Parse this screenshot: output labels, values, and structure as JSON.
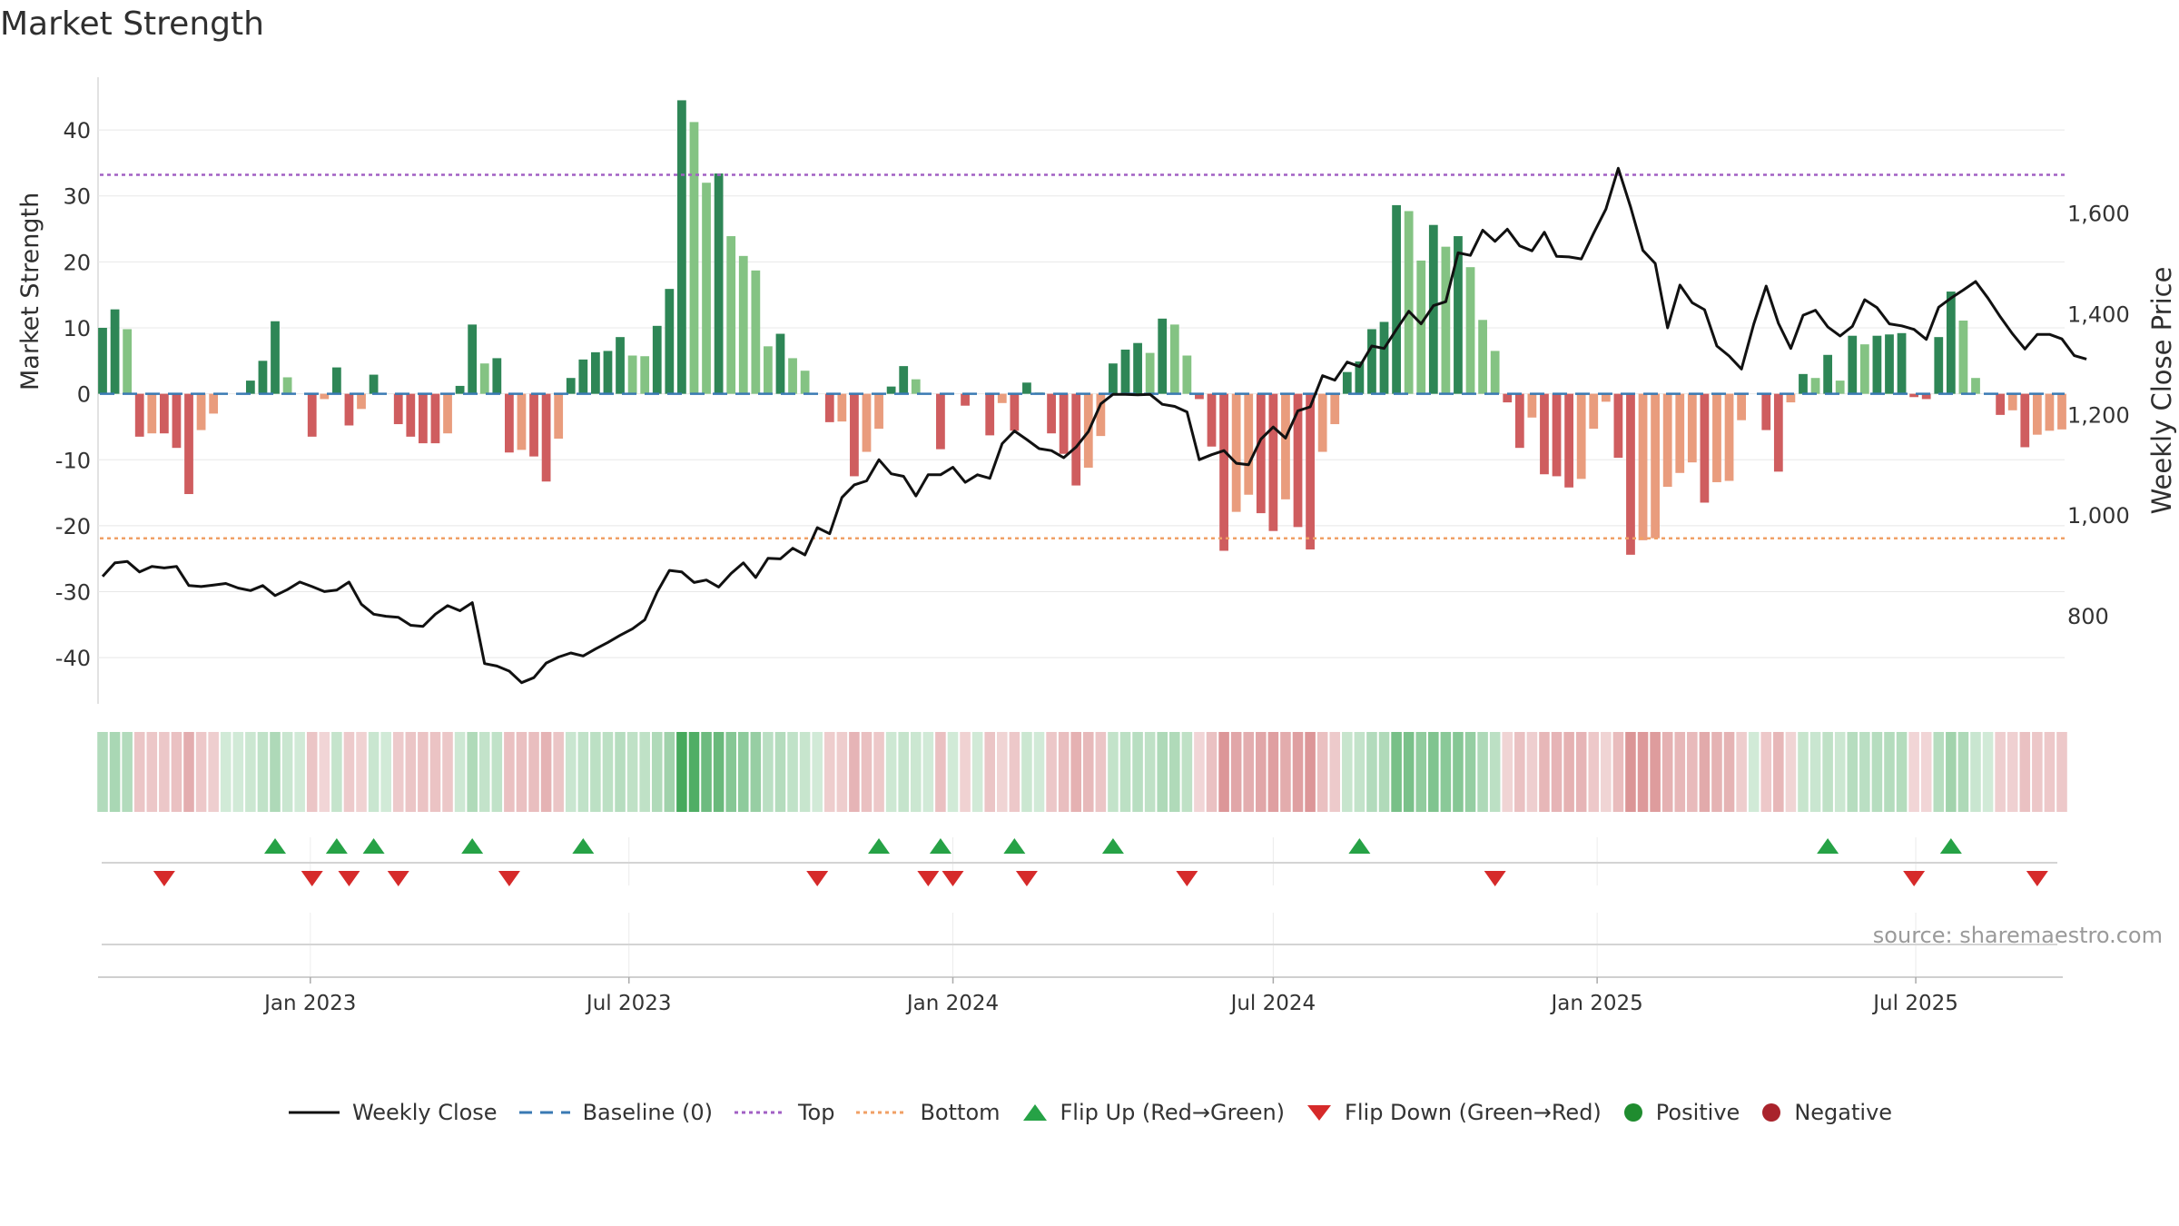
{
  "chart_data": {
    "type": "bar",
    "title": "Market Strength",
    "ylabel": "Market Strength",
    "y2label": "Weekly Close Price",
    "ylim": [
      -47,
      48
    ],
    "y2lim": [
      625,
      1870
    ],
    "yticks": [
      40,
      30,
      20,
      10,
      0,
      -10,
      -20,
      -30,
      -40
    ],
    "y2ticks": [
      1600,
      1400,
      1200,
      1000,
      800
    ],
    "y2tick_labels": [
      "1,600",
      "1,400",
      "1,200",
      "1,000",
      "800"
    ],
    "top_line": 33.2,
    "bottom_line": -21.9,
    "x_start": "2022-09-05",
    "x_step_days": 7,
    "x_tick_dates": [
      "2023-01-01",
      "2023-07-01",
      "2024-01-01",
      "2024-07-01",
      "2025-01-01",
      "2025-07-01"
    ],
    "x_tick_labels": [
      "Jan 2023",
      "Jul 2023",
      "Jan 2024",
      "Jul 2024",
      "Jan 2025",
      "Jul 2025"
    ],
    "strength": [
      10,
      12.8,
      9.8,
      -6.5,
      -6,
      -6,
      -8.2,
      -15.2,
      -5.5,
      -3,
      0,
      0,
      2,
      5,
      11,
      2.5,
      0,
      -6.5,
      -0.8,
      4,
      -4.8,
      -2.3,
      2.9,
      0,
      -4.6,
      -6.5,
      -7.5,
      -7.5,
      -6,
      1.2,
      10.5,
      4.6,
      5.4,
      -8.9,
      -8.5,
      -9.5,
      -13.3,
      -6.8,
      2.4,
      5.2,
      6.3,
      6.5,
      8.6,
      5.8,
      5.7,
      10.3,
      15.9,
      44.5,
      41.2,
      32,
      33.4,
      23.9,
      20.9,
      18.7,
      7.2,
      9.1,
      5.4,
      3.5,
      0,
      -4.3,
      -4.2,
      -12.5,
      -8.8,
      -5.3,
      1.1,
      4.2,
      2.2,
      0,
      -8.4,
      0,
      -1.8,
      0,
      -6.3,
      -1.4,
      -5.6,
      1.7,
      0.2,
      -6,
      -9.1,
      -13.9,
      -11.2,
      -6.4,
      4.6,
      6.7,
      7.7,
      6.2,
      11.4,
      10.5,
      5.8,
      -0.8,
      -8,
      -23.8,
      -17.9,
      -15.3,
      -18.1,
      -20.8,
      -16,
      -20.2,
      -23.6,
      -8.8,
      -4.6,
      3.3,
      4.9,
      9.8,
      10.9,
      28.6,
      27.7,
      20.2,
      25.6,
      22.3,
      23.9,
      19.2,
      11.2,
      6.5,
      -1.3,
      -8.2,
      -3.6,
      -12.2,
      -12.5,
      -14.2,
      -12.9,
      -5.3,
      -1.2,
      -9.7,
      -24.4,
      -22.2,
      -21.9,
      -14.1,
      -12,
      -10.4,
      -16.5,
      -13.4,
      -13.2,
      -4,
      0,
      -5.5,
      -11.8,
      -1.3,
      3,
      2.4,
      5.9,
      2,
      8.8,
      7.5,
      8.8,
      9,
      9.2,
      -0.5,
      -0.8,
      8.6,
      15.5,
      11.1,
      2.4,
      0,
      -3.2,
      -2.5,
      -8.1,
      -6.2,
      -5.6,
      -5.4
    ],
    "weekly_close": [
      878,
      905,
      908,
      887,
      898,
      895,
      898,
      860,
      858,
      861,
      864,
      855,
      850,
      860,
      840,
      852,
      867,
      858,
      848,
      851,
      867,
      823,
      803,
      799,
      797,
      781,
      779,
      803,
      820,
      810,
      826,
      705,
      700,
      690,
      667,
      677,
      706,
      718,
      726,
      720,
      734,
      747,
      761,
      774,
      792,
      847,
      890,
      887,
      866,
      871,
      857,
      884,
      905,
      876,
      914,
      913,
      934,
      921,
      975,
      963,
      1035,
      1060,
      1068,
      1110,
      1082,
      1077,
      1038,
      1080,
      1080,
      1095,
      1065,
      1080,
      1073,
      1142,
      1167,
      1150,
      1132,
      1128,
      1114,
      1135,
      1166,
      1221,
      1240,
      1240,
      1239,
      1240,
      1220,
      1216,
      1205,
      1110,
      1120,
      1128,
      1103,
      1100,
      1151,
      1175,
      1153,
      1207,
      1215,
      1277,
      1268,
      1304,
      1295,
      1336,
      1331,
      1369,
      1405,
      1380,
      1416,
      1424,
      1521,
      1516,
      1566,
      1544,
      1568,
      1535,
      1525,
      1562,
      1514,
      1513,
      1509,
      1560,
      1608,
      1689,
      1612,
      1526,
      1500,
      1372,
      1457,
      1422,
      1408,
      1336,
      1316,
      1290,
      1380,
      1455,
      1381,
      1331,
      1397,
      1407,
      1374,
      1356,
      1375,
      1428,
      1412,
      1380,
      1376,
      1369,
      1349,
      1413,
      1431,
      1447,
      1464,
      1431,
      1394,
      1360,
      1330,
      1359,
      1359,
      1350,
      1317,
      1310
    ],
    "flip_up_dates": [
      "2022-12-12",
      "2023-01-16",
      "2023-02-06",
      "2023-04-03",
      "2023-06-05",
      "2023-11-20",
      "2023-12-25",
      "2024-02-05",
      "2024-04-01",
      "2024-08-19",
      "2025-05-12",
      "2025-07-21"
    ],
    "flip_down_dates": [
      "2022-10-10",
      "2023-01-02",
      "2023-01-23",
      "2023-02-20",
      "2023-04-24",
      "2023-10-16",
      "2023-12-18",
      "2024-01-01",
      "2024-02-12",
      "2024-05-13",
      "2024-11-04",
      "2025-06-30",
      "2025-09-08"
    ],
    "strength_colors": {
      "strong_pos": "#2e8656",
      "weak_pos": "#84c383",
      "strong_neg": "#cf5d5f",
      "weak_neg": "#e99c7d"
    },
    "line_color": "#111111",
    "top_color": "#a260c4",
    "bottom_color": "#f0a066",
    "baseline_color": "#3a7ab3",
    "flip_up_color": "#26a246",
    "flip_down_color": "#d62a2a",
    "positive_color": "#1f8c2f",
    "negative_color": "#a9232c",
    "legend_position": "bottom-center"
  },
  "legend": {
    "weekly_close": "Weekly Close",
    "baseline": "Baseline (0)",
    "top": "Top",
    "bottom": "Bottom",
    "flip_up": "Flip Up (Red→Green)",
    "flip_down": "Flip Down (Green→Red)",
    "positive": "Positive",
    "negative": "Negative"
  },
  "source": "source: sharemaestro.com"
}
